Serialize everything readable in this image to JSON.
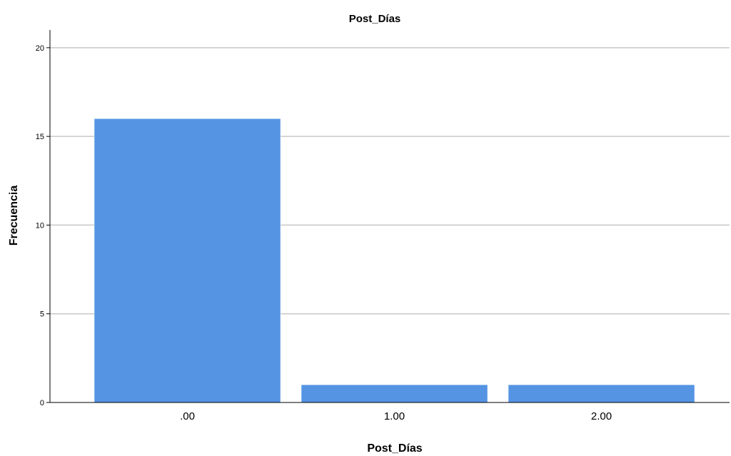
{
  "chart_data": {
    "type": "bar",
    "title": "Post_Días",
    "xlabel": "Post_Días",
    "ylabel": "Frecuencia",
    "categories": [
      ".00",
      "1.00",
      "2.00"
    ],
    "values": [
      16,
      1,
      1
    ],
    "ylim": [
      0,
      21
    ],
    "yticks": [
      0,
      5,
      10,
      15,
      20
    ],
    "grid": true,
    "legend": "none",
    "bar_color": "#5594e3"
  }
}
